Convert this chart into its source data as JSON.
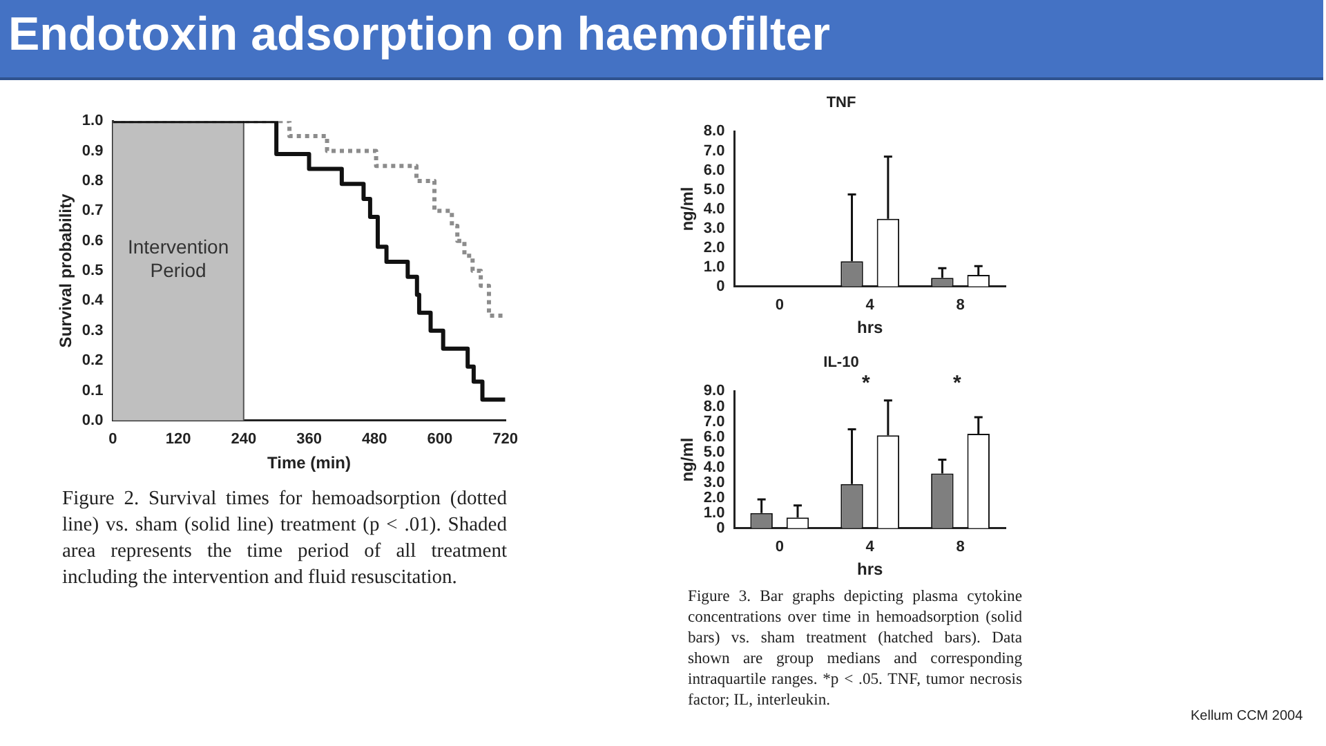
{
  "chart_data": [
    {
      "type": "step",
      "title": "Endotoxin adsorption on haemofilter",
      "xlabel": "Time (min)",
      "ylabel": "Survival probability",
      "marker": "none",
      "xlim": [
        0,
        720
      ],
      "xticks": [
        0,
        120,
        240,
        360,
        480,
        600,
        720
      ],
      "ylim": [
        0,
        1
      ],
      "yticks": [
        {
          "value": 0,
          "label": "0.0"
        },
        {
          "value": 0.1,
          "label": "0.1"
        },
        {
          "value": 0.2,
          "label": "0.2"
        },
        {
          "value": 0.3,
          "label": "0.3"
        },
        {
          "value": 0.4,
          "label": "0.4"
        },
        {
          "value": 0.5,
          "label": "0.5"
        },
        {
          "value": 0.6,
          "label": "0.6"
        },
        {
          "value": 0.7,
          "label": "0.7"
        },
        {
          "value": 0.8,
          "label": "0.8"
        },
        {
          "value": 0.9,
          "label": "0.9"
        },
        {
          "value": 1,
          "label": "1.0"
        }
      ],
      "bands": [
        {
          "axis": "x",
          "from": 0,
          "to": 240,
          "label": "Intervention Period",
          "color": "#bfbfbf"
        }
      ],
      "series": [
        {
          "color": "#111111",
          "line_style": "solid",
          "x": [
            0,
            300,
            360,
            420,
            460,
            472,
            486,
            502,
            541,
            558,
            562,
            583,
            606,
            651,
            662,
            678,
            720
          ],
          "values": [
            1,
            0.89,
            0.84,
            0.79,
            0.74,
            0.68,
            0.58,
            0.53,
            0.48,
            0.42,
            0.36,
            0.3,
            0.24,
            0.18,
            0.13,
            0.07,
            0.07
          ]
        },
        {
          "color": "#8c8c8c",
          "line_style": "dotted",
          "x": [
            0,
            324,
            393,
            483,
            557,
            590,
            622,
            632,
            645,
            660,
            675,
            690,
            720
          ],
          "values": [
            1,
            0.95,
            0.9,
            0.85,
            0.8,
            0.7,
            0.65,
            0.6,
            0.55,
            0.5,
            0.45,
            0.35,
            0.35
          ]
        }
      ],
      "annotations": [
        "Figure 2. Survival times for hemoadsorption (dotted line) vs. sham (solid line) treatment (p < .01). Shaded area represents the time period of all treatment including the intervention and fluid resuscitation."
      ]
    },
    {
      "type": "bar",
      "title": "TNF",
      "xlabel": "hrs",
      "ylabel": "ng/ml",
      "categories": [
        "0",
        "4",
        "8"
      ],
      "ylim": [
        0,
        8
      ],
      "yticks": [
        0,
        {
          "value": 1,
          "label": "1.0"
        },
        {
          "value": 2,
          "label": "2.0"
        },
        {
          "value": 3,
          "label": "3.0"
        },
        {
          "value": 4,
          "label": "4.0"
        },
        {
          "value": 5,
          "label": "5.0"
        },
        {
          "value": 6,
          "label": "6.0"
        },
        {
          "value": 7,
          "label": "7.0"
        },
        {
          "value": 8,
          "label": "8.0"
        }
      ],
      "series": [
        {
          "color": "#7f7f7f",
          "values": [
            0,
            1.3,
            0.45
          ],
          "errors": [
            null,
            [
              1.3,
              4.75
            ],
            [
              0.45,
              0.95
            ]
          ]
        },
        {
          "color": "#ffffff",
          "values": [
            0,
            3.5,
            0.6
          ],
          "errors": [
            null,
            [
              3.5,
              6.7
            ],
            [
              0.6,
              1.05
            ]
          ]
        }
      ]
    },
    {
      "type": "bar",
      "title": "IL-10",
      "xlabel": "hrs",
      "ylabel": "ng/ml",
      "categories": [
        "0",
        "4",
        "8"
      ],
      "ylim": [
        0,
        9
      ],
      "yticks": [
        0,
        {
          "value": 1,
          "label": "1.0"
        },
        {
          "value": 2,
          "label": "2.0"
        },
        {
          "value": 3,
          "label": "3.0"
        },
        {
          "value": 4,
          "label": "4.0"
        },
        {
          "value": 5,
          "label": "5.0"
        },
        {
          "value": 6,
          "label": "6.0"
        },
        {
          "value": 7,
          "label": "7.0"
        },
        {
          "value": 8,
          "label": "8.0"
        },
        {
          "value": 9,
          "label": "9.0"
        }
      ],
      "series": [
        {
          "color": "#7f7f7f",
          "values": [
            1.0,
            2.9,
            3.6
          ],
          "errors": [
            [
              1.0,
              1.9
            ],
            [
              2.9,
              6.5
            ],
            [
              3.6,
              4.5
            ]
          ]
        },
        {
          "color": "#ffffff",
          "values": [
            0.7,
            6.1,
            6.2
          ],
          "errors": [
            [
              0.7,
              1.5
            ],
            [
              6.1,
              8.4
            ],
            [
              6.2,
              7.3
            ]
          ]
        }
      ],
      "annotations": [
        "*",
        "*",
        "Figure 3. Bar graphs depicting plasma cytokine concentrations over time in hemoadsorption (solid bars) vs. sham treatment (hatched bars). Data shown are group medians and corresponding intraquartile ranges. *p < .05. TNF, tumor necrosis factor; IL, interleukin.",
        "Kellum CCM 2004"
      ]
    }
  ]
}
